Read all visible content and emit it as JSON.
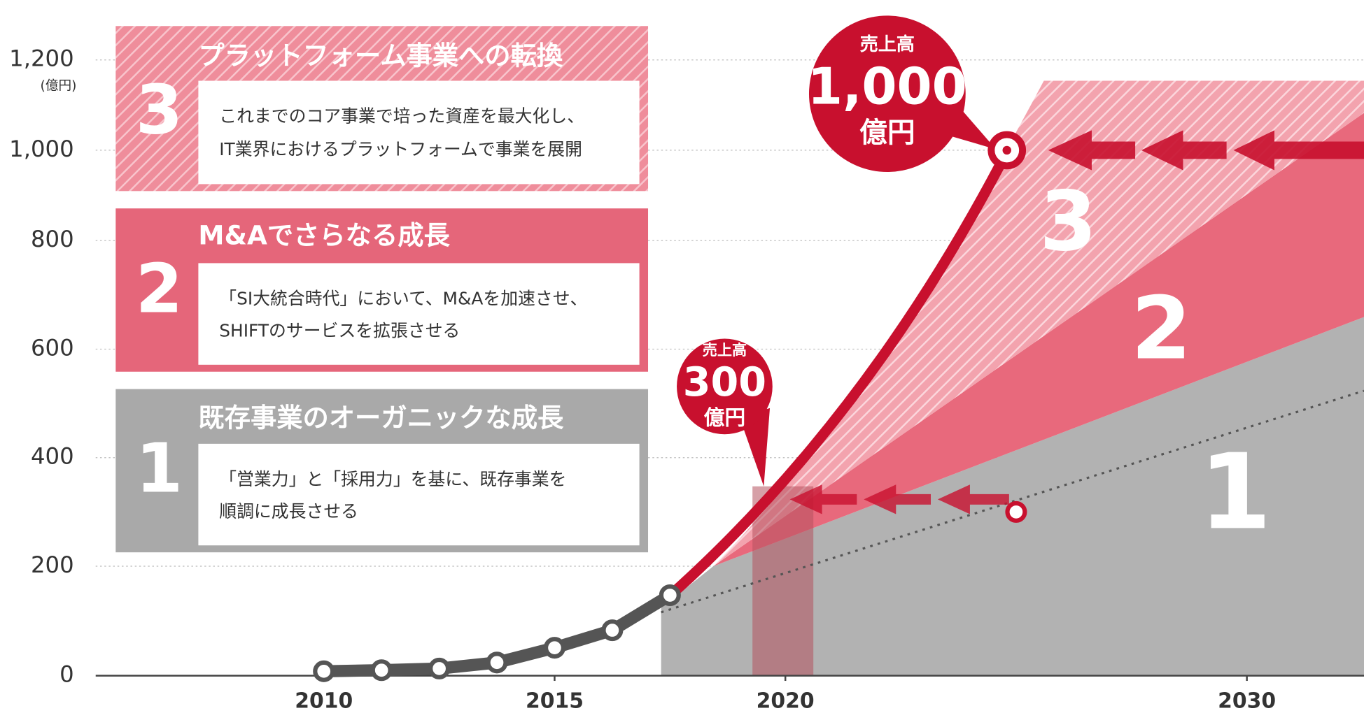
{
  "chart_data": {
    "type": "line",
    "y_unit": "(億円)",
    "xlim": [
      2005,
      2032.5
    ],
    "xticks": [
      2010,
      2015,
      2020,
      2030
    ],
    "ylim": [
      0,
      1200
    ],
    "yticks": [
      0,
      200,
      400,
      600,
      800,
      {
        "value": 1000,
        "label": "1,000"
      },
      {
        "value": 1200,
        "label": "1,200"
      }
    ],
    "grid": true,
    "series": [
      {
        "name": "売上高",
        "color": "#555555",
        "x": [
          2010,
          2011.25,
          2012.5,
          2013.75,
          2015,
          2016.25,
          2017.5
        ],
        "values": [
          8,
          10,
          13,
          24,
          51,
          83,
          147
        ]
      }
    ],
    "targets": [
      {
        "label": "売上高",
        "amount": "300",
        "unit": "億円",
        "x": 2025,
        "value": 300
      },
      {
        "label": "売上高",
        "amount": "1,000",
        "unit": "億円",
        "x": 2024.8,
        "value": 1000
      }
    ],
    "panels": [
      {
        "number": "3",
        "title": "プラットフォーム事業への転換",
        "text": [
          "これまでのコア事業で培った資産を最大化し、",
          "IT業界におけるプラットフォームで事業を展開"
        ]
      },
      {
        "number": "2",
        "title": "M&Aでさらなる成長",
        "text": [
          "「SI大統合時代」において、M&Aを加速させ、",
          "SHIFTのサービスを拡張させる"
        ]
      },
      {
        "number": "1",
        "title": "既存事業のオーガニックな成長",
        "text": [
          "「営業力」と「採用力」を基に、既存事業を",
          "順調に成長させる"
        ]
      }
    ]
  }
}
